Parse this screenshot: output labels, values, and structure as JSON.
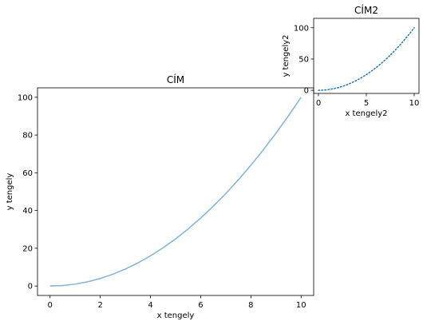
{
  "chart_data": [
    {
      "type": "line",
      "title": "CÍM",
      "xlabel": "x tengely",
      "ylabel": "y tengely",
      "xlim": [
        -0.5,
        10.5
      ],
      "ylim": [
        -5,
        105
      ],
      "xticks": [
        0,
        2,
        4,
        6,
        8,
        10
      ],
      "yticks": [
        0,
        20,
        40,
        60,
        80,
        100
      ],
      "grid": false,
      "series": [
        {
          "color": "#7fb3d9",
          "line_style": "solid",
          "x": [
            0,
            0.5,
            1,
            1.5,
            2,
            2.5,
            3,
            3.5,
            4,
            4.5,
            5,
            5.5,
            6,
            6.5,
            7,
            7.5,
            8,
            8.5,
            9,
            9.5,
            10
          ],
          "y": [
            0,
            0.25,
            1,
            2.25,
            4,
            6.25,
            9,
            12.25,
            16,
            20.25,
            25,
            30.25,
            36,
            42.25,
            49,
            56.25,
            64,
            72.25,
            81,
            90.25,
            100
          ]
        }
      ]
    },
    {
      "type": "line",
      "title": "CÍM2",
      "xlabel": "x tengely2",
      "ylabel": "y tengely2",
      "xlim": [
        -0.5,
        10.5
      ],
      "ylim": [
        -5,
        115
      ],
      "xticks": [
        0,
        5,
        10
      ],
      "yticks": [
        0,
        50,
        100
      ],
      "grid": false,
      "series": [
        {
          "color": "#1f77b4",
          "line_style": "dotted",
          "x": [
            0,
            0.5,
            1,
            1.5,
            2,
            2.5,
            3,
            3.5,
            4,
            4.5,
            5,
            5.5,
            6,
            6.5,
            7,
            7.5,
            8,
            8.5,
            9,
            9.5,
            10
          ],
          "y": [
            0,
            0.25,
            1,
            2.25,
            4,
            6.25,
            9,
            12.25,
            16,
            20.25,
            25,
            30.25,
            36,
            42.25,
            49,
            56.25,
            64,
            72.25,
            81,
            90.25,
            100
          ]
        }
      ]
    }
  ]
}
